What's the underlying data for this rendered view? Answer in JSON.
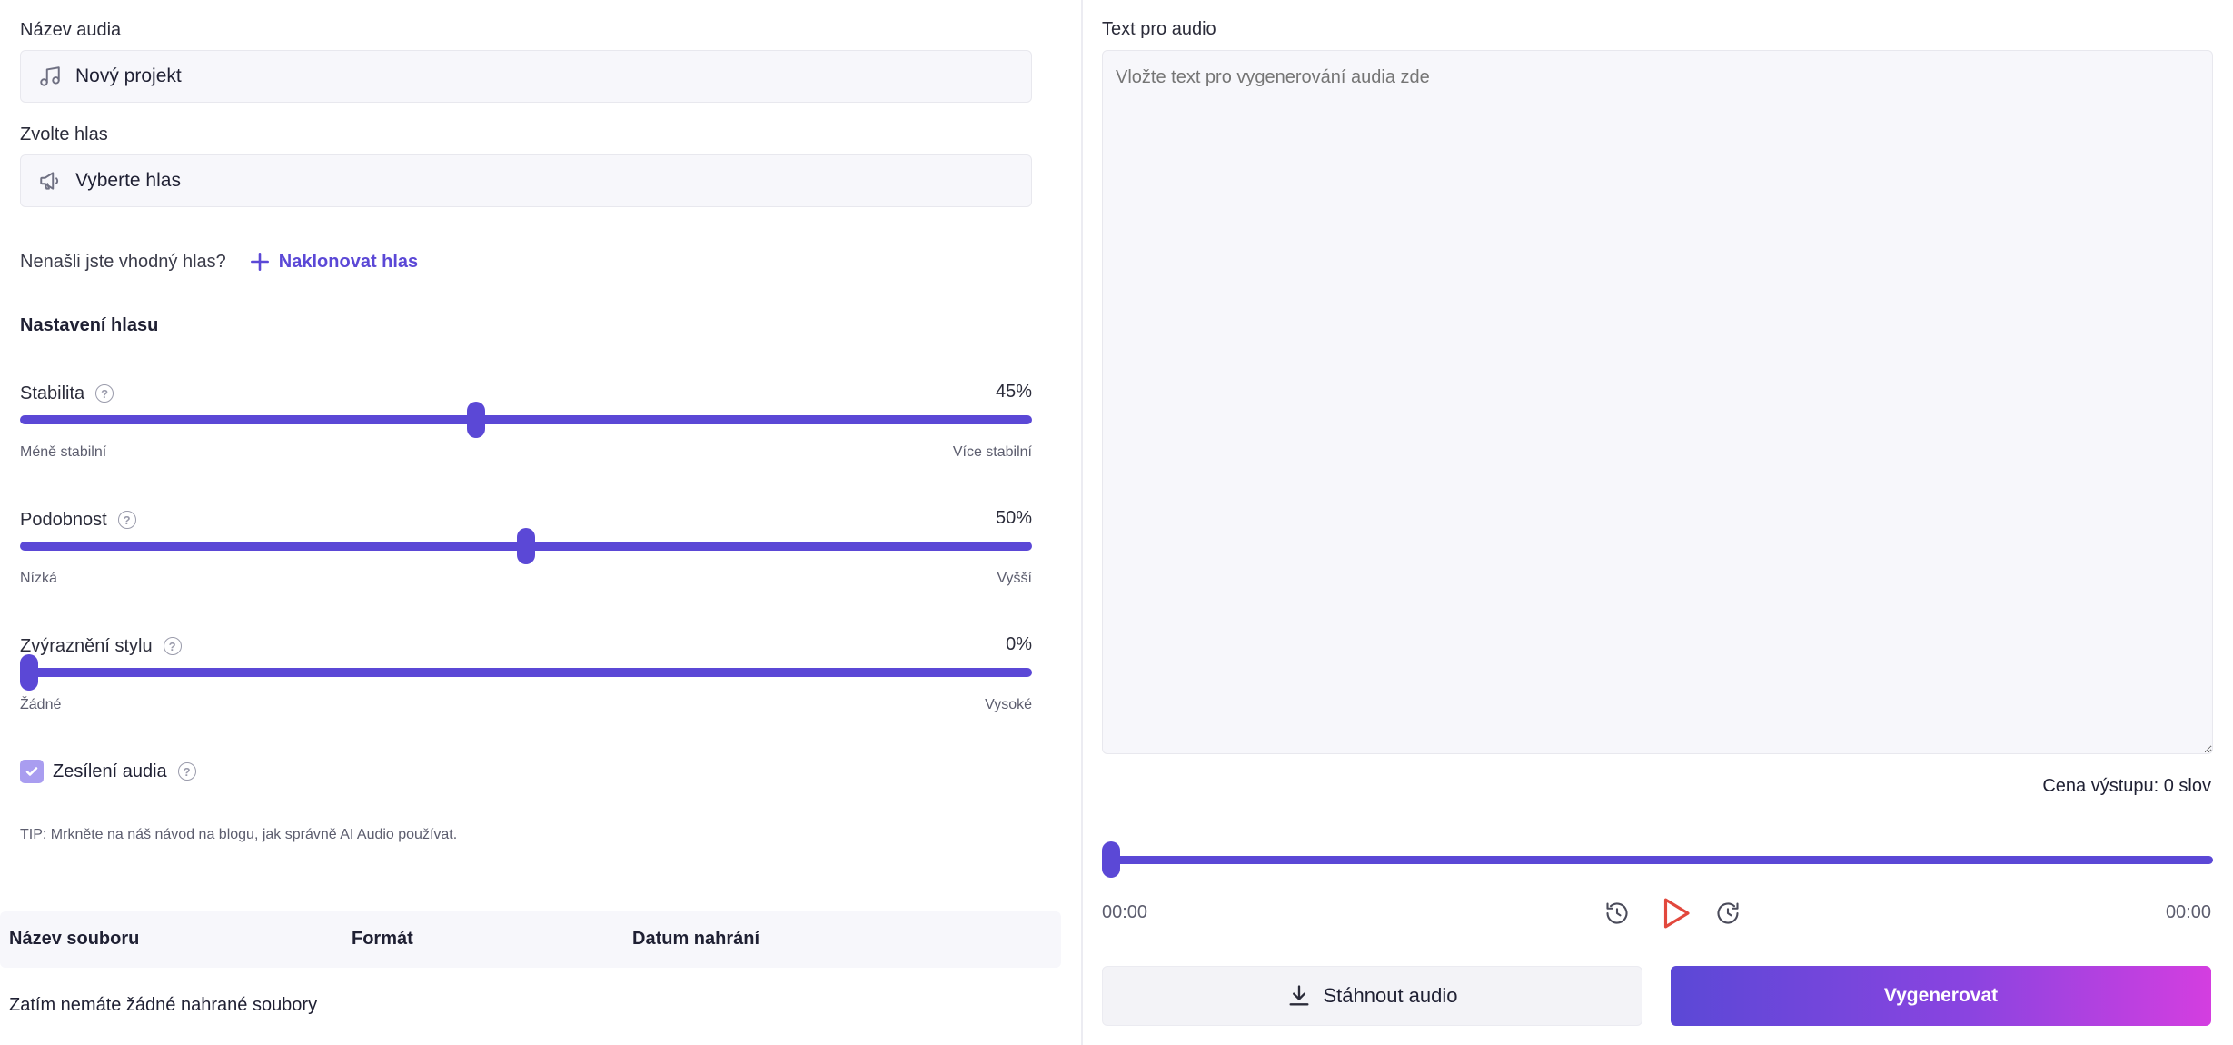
{
  "audio_name": {
    "label": "Název audia",
    "value": "Nový projekt",
    "icon": "music-note-icon"
  },
  "voice": {
    "label": "Zvolte hlas",
    "value": "Vyberte hlas",
    "icon": "megaphone-icon"
  },
  "clone": {
    "question": "Nenašli jste vhodný hlas?",
    "link": "Naklonovat hlas",
    "icon": "plus-icon"
  },
  "settings": {
    "title": "Nastavení hlasu",
    "stability": {
      "label": "Stabilita",
      "value_text": "45%",
      "value": 45,
      "min_label": "Méně stabilní",
      "max_label": "Více stabilní"
    },
    "similarity": {
      "label": "Podobnost",
      "value_text": "50%",
      "value": 50,
      "min_label": "Nízká",
      "max_label": "Vyšší"
    },
    "style": {
      "label": "Zvýraznění stylu",
      "value_text": "0%",
      "value": 0,
      "min_label": "Žádné",
      "max_label": "Vysoké"
    }
  },
  "boost": {
    "label": "Zesílení audia",
    "checked": true
  },
  "tip": "TIP: Mrkněte na náš návod na blogu, jak správně AI Audio používat.",
  "files_table": {
    "headers": [
      "Název souboru",
      "Formát",
      "Datum nahrání"
    ],
    "empty_text": "Zatím nemáte žádné nahrané soubory"
  },
  "text_input": {
    "label": "Text pro audio",
    "placeholder": "Vložte text pro vygenerování audia zde"
  },
  "cost": "Cena výstupu: 0 slov",
  "player": {
    "current_time": "00:00",
    "total_time": "00:00",
    "progress": 0
  },
  "buttons": {
    "download": "Stáhnout audio",
    "generate": "Vygenerovat"
  },
  "colors": {
    "accent": "#5b48d6",
    "play": "#e2483d",
    "gradient_end": "#d43ee0"
  }
}
